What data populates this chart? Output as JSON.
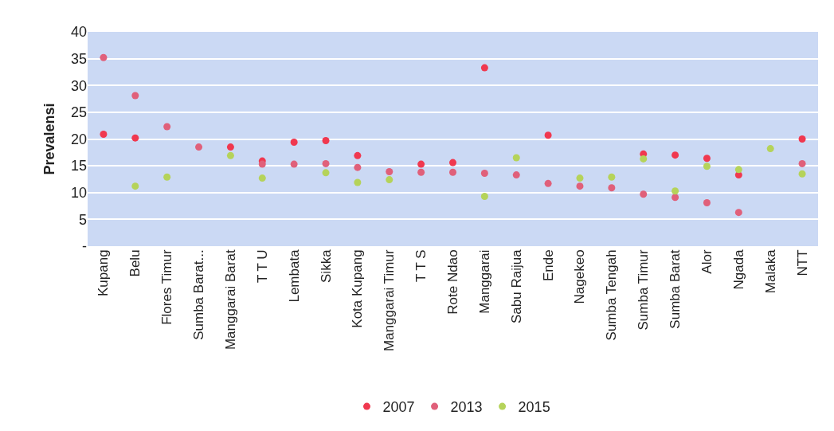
{
  "chart_data": {
    "type": "scatter",
    "ylabel": "Prevalensi",
    "categories": [
      "Kupang",
      "Belu",
      "Flores Timur",
      "Sumba Barat...",
      "Manggarai Barat",
      "T T U",
      "Lembata",
      "Sikka",
      "Kota Kupang",
      "Manggarai Timur",
      "T T S",
      "Rote Ndao",
      "Manggarai",
      "Sabu Raijua",
      "Ende",
      "Nagekeo",
      "Sumba Tengah",
      "Sumba Timur",
      "Sumba Barat",
      "Alor",
      "Ngada",
      "Malaka",
      "NTT"
    ],
    "series": [
      {
        "name": "2007",
        "color": "#f0384f",
        "values": [
          20.9,
          20.2,
          null,
          null,
          18.5,
          15.9,
          19.4,
          19.7,
          16.9,
          null,
          15.3,
          15.6,
          33.3,
          null,
          20.7,
          null,
          null,
          17.2,
          17.0,
          16.4,
          13.3,
          null,
          20.0
        ]
      },
      {
        "name": "2013",
        "color": "#e0607a",
        "values": [
          35.2,
          28.1,
          22.3,
          18.5,
          null,
          15.3,
          15.3,
          15.4,
          14.7,
          13.9,
          13.8,
          13.8,
          13.6,
          13.3,
          11.7,
          11.2,
          10.9,
          9.7,
          9.1,
          8.1,
          6.3,
          null,
          15.4
        ]
      },
      {
        "name": "2015",
        "color": "#b5d35a",
        "values": [
          null,
          11.2,
          12.9,
          null,
          16.9,
          12.7,
          null,
          13.7,
          11.9,
          12.4,
          null,
          null,
          9.3,
          16.5,
          null,
          12.7,
          12.9,
          16.3,
          10.3,
          14.9,
          14.3,
          18.2,
          13.5
        ]
      }
    ],
    "ylim": [
      0,
      40
    ],
    "yticks": [
      {
        "value": 0,
        "label": "-"
      },
      5,
      10,
      15,
      20,
      25,
      30,
      35,
      40
    ],
    "grid": "y",
    "legend": "bottom",
    "marker": "circle"
  }
}
